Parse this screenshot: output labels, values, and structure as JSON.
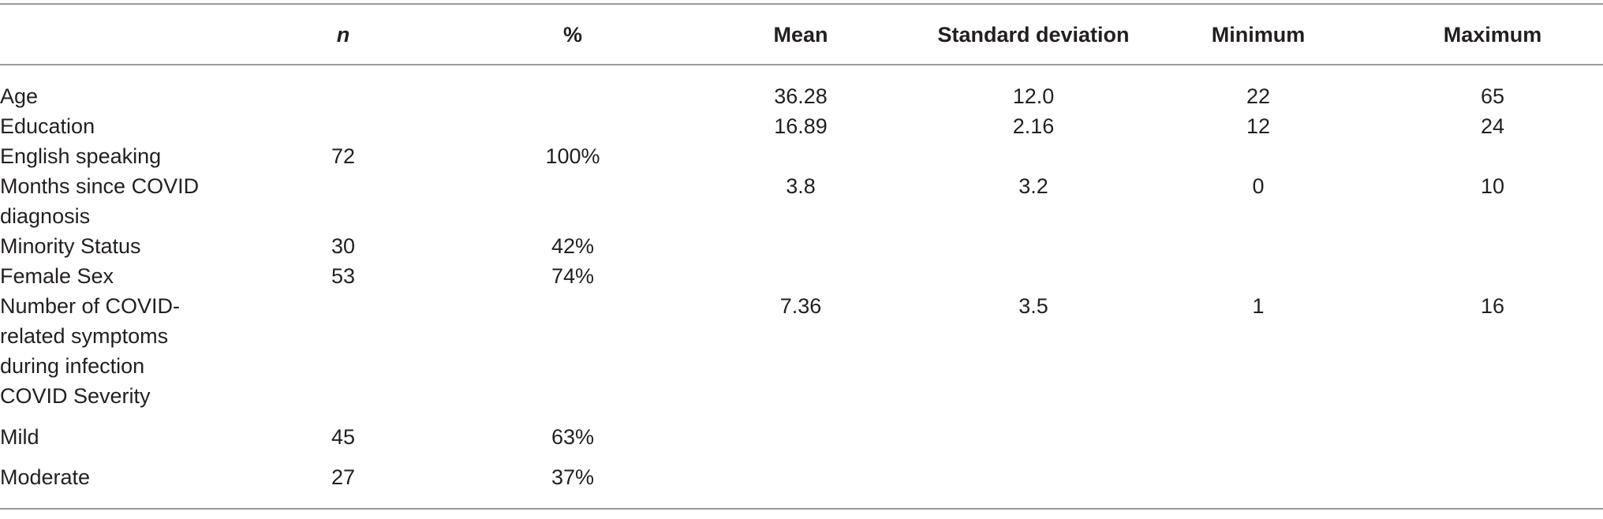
{
  "table": {
    "headers": [
      "",
      "n",
      "%",
      "Mean",
      "Standard deviation",
      "Minimum",
      "Maximum"
    ],
    "rows": [
      {
        "label_lines": [
          "Age"
        ],
        "n": "",
        "pct": "",
        "mean": "36.28",
        "sd": "12.0",
        "min": "22",
        "max": "65"
      },
      {
        "label_lines": [
          "Education"
        ],
        "n": "",
        "pct": "",
        "mean": "16.89",
        "sd": "2.16",
        "min": "12",
        "max": "24"
      },
      {
        "label_lines": [
          "English speaking"
        ],
        "n": "72",
        "pct": "100%",
        "mean": "",
        "sd": "",
        "min": "",
        "max": ""
      },
      {
        "label_lines": [
          "Months since COVID",
          "diagnosis"
        ],
        "n": "",
        "pct": "",
        "mean": "3.8",
        "sd": "3.2",
        "min": "0",
        "max": "10"
      },
      {
        "label_lines": [
          "Minority Status"
        ],
        "n": "30",
        "pct": "42%",
        "mean": "",
        "sd": "",
        "min": "",
        "max": ""
      },
      {
        "label_lines": [
          "Female Sex"
        ],
        "n": "53",
        "pct": "74%",
        "mean": "",
        "sd": "",
        "min": "",
        "max": ""
      },
      {
        "label_lines": [
          "Number of COVID-",
          "related symptoms",
          "during infection"
        ],
        "n": "",
        "pct": "",
        "mean": "7.36",
        "sd": "3.5",
        "min": "1",
        "max": "16"
      },
      {
        "label_lines": [
          "COVID Severity"
        ],
        "n": "",
        "pct": "",
        "mean": "",
        "sd": "",
        "min": "",
        "max": ""
      },
      {
        "label_lines": [
          "Mild"
        ],
        "n": "45",
        "pct": "63%",
        "mean": "",
        "sd": "",
        "min": "",
        "max": ""
      },
      {
        "label_lines": [
          "Moderate"
        ],
        "n": "27",
        "pct": "37%",
        "mean": "",
        "sd": "",
        "min": "",
        "max": ""
      }
    ]
  }
}
